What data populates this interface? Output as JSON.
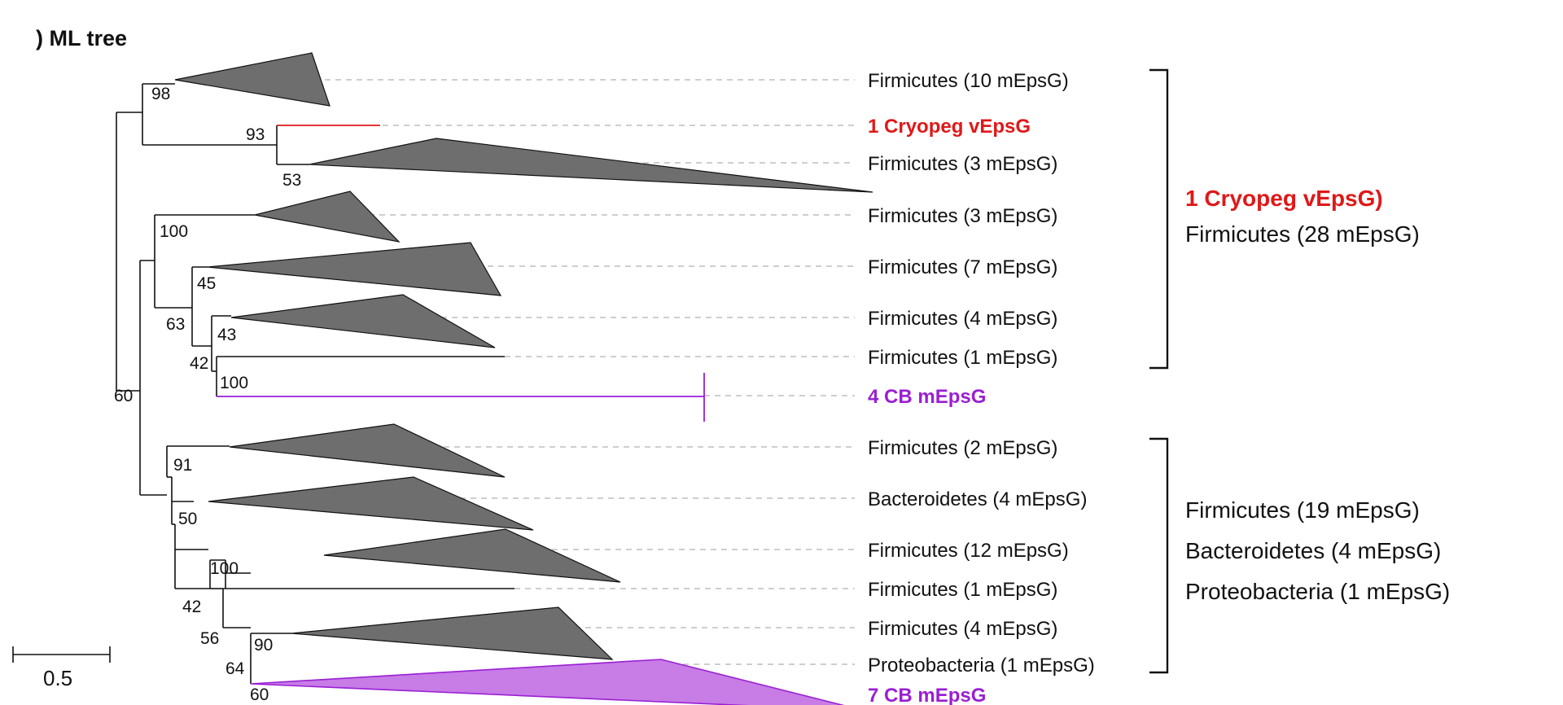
{
  "panel_title": ") ML tree",
  "scale_bar": {
    "label": "0.5"
  },
  "colors": {
    "highlight_red": "#e01818",
    "cb_purple": "#9a1fd4",
    "collapsed_clade": "#6e6e6e",
    "cb_clade_fill": "#c77ce6"
  },
  "leaves": [
    {
      "label": "Firmicutes (10 mEpsG)",
      "style": "normal"
    },
    {
      "label": "1 Cryopeg vEpsG",
      "style": "red"
    },
    {
      "label": "Firmicutes (3 mEpsG)",
      "style": "normal"
    },
    {
      "label": "Firmicutes (3 mEpsG)",
      "style": "normal"
    },
    {
      "label": "Firmicutes (7 mEpsG)",
      "style": "normal"
    },
    {
      "label": "Firmicutes (4 mEpsG)",
      "style": "normal"
    },
    {
      "label": "Firmicutes (1 mEpsG)",
      "style": "normal"
    },
    {
      "label": "4 CB mEpsG",
      "style": "purple"
    },
    {
      "label": "Firmicutes (2 mEpsG)",
      "style": "normal"
    },
    {
      "label": "Bacteroidetes (4 mEpsG)",
      "style": "normal"
    },
    {
      "label": "Firmicutes (12 mEpsG)",
      "style": "normal"
    },
    {
      "label": "Firmicutes (1 mEpsG)",
      "style": "normal"
    },
    {
      "label": "Firmicutes (4 mEpsG)",
      "style": "normal"
    },
    {
      "label": "Proteobacteria (1 mEpsG)",
      "style": "normal"
    },
    {
      "label": "7 CB mEpsG",
      "style": "purple"
    }
  ],
  "bootstrap": [
    "98",
    "93",
    "53",
    "100",
    "45",
    "63",
    "43",
    "42",
    "100",
    "60",
    "91",
    "50",
    "100",
    "42",
    "56",
    "90",
    "64",
    "60"
  ],
  "groups": [
    {
      "lines": [
        {
          "text": "1 Cryopeg vEpsG)",
          "style": "red"
        },
        {
          "text": "Firmicutes (28 mEpsG)",
          "style": "normal"
        }
      ]
    },
    {
      "lines": [
        {
          "text": "Firmicutes (19 mEpsG)",
          "style": "normal"
        },
        {
          "text": "Bacteroidetes (4 mEpsG)",
          "style": "normal"
        },
        {
          "text": "Proteobacteria (1 mEpsG)",
          "style": "normal"
        }
      ]
    }
  ]
}
